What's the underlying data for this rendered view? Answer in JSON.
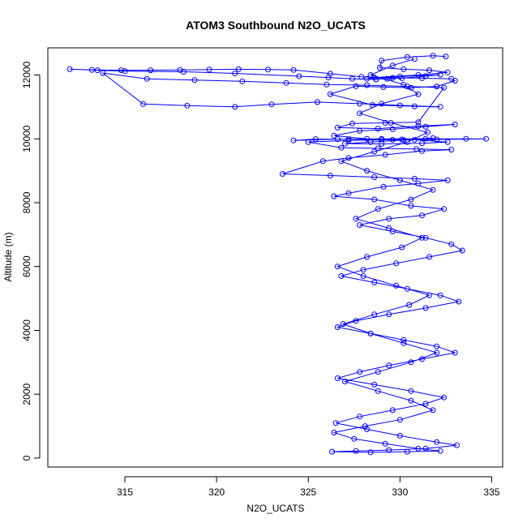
{
  "chart_data": {
    "type": "scatter",
    "title": "ATOM3 Southbound N2O_UCATS",
    "xlabel": "N2O_UCATS",
    "ylabel": "Altitude (m)",
    "xlim": [
      310.8,
      335.6
    ],
    "ylim": [
      -280,
      12850
    ],
    "x_ticks": [
      315,
      320,
      325,
      330,
      335
    ],
    "y_ticks": [
      0,
      2000,
      4000,
      6000,
      8000,
      10000,
      12000
    ],
    "grid": false,
    "connected": true,
    "series": [
      {
        "color": "#0000ff",
        "marker": "open-circle",
        "x": [
          332.5,
          331.8,
          330.4,
          329.0,
          328.9,
          330.2,
          331.6,
          332.6,
          331.0,
          328.6,
          328.2,
          330.0,
          332.2,
          331.4,
          330.1,
          329.3,
          328.7,
          327.4,
          326.1,
          324.5,
          321.0,
          318.2,
          315.0,
          313.5,
          312.0,
          313.2,
          314.8,
          316.4,
          318.0,
          319.6,
          321.2,
          322.8,
          324.2,
          326.2,
          327.9,
          329.6,
          331.2,
          332.8,
          333.0,
          332.0,
          330.6,
          329.1,
          327.6,
          326.2,
          328.5,
          330.8,
          332.2,
          330.0,
          327.8,
          325.5,
          323.0,
          321.0,
          318.4,
          316.0,
          313.8,
          316.2,
          318.8,
          321.4,
          323.8,
          326.0,
          328.2,
          330.4,
          332.4,
          331.0,
          329.2,
          327.4,
          326.6,
          328.8,
          331.0,
          333.0,
          331.4,
          329.6,
          327.8,
          326.4,
          328.2,
          330.1,
          331.8,
          330.2,
          328.4,
          327.0,
          329.0,
          331.2,
          332.6,
          330.8,
          329.0,
          327.2,
          325.4,
          324.2,
          326.6,
          329.0,
          331.4,
          333.6,
          334.7,
          332.0,
          329.6,
          327.2,
          325.0,
          326.8,
          328.8,
          330.9,
          332.8,
          331.2,
          329.2,
          327.2,
          325.8,
          323.6,
          326.2,
          328.6,
          330.8,
          332.6,
          331.0,
          329.1,
          327.2,
          326.4,
          328.6,
          330.6,
          332.4,
          331.2,
          329.4,
          327.8,
          329.6,
          331.4,
          332.8,
          333.4,
          331.6,
          329.8,
          328.0,
          326.8,
          328.6,
          330.4,
          332.2,
          333.2,
          331.4,
          329.4,
          327.6,
          326.6,
          328.4,
          330.2,
          332.0,
          333.0,
          331.2,
          329.4,
          327.8,
          326.6,
          328.6,
          330.6,
          332.4,
          331.4,
          329.6,
          327.8,
          326.5,
          328.2,
          330.0,
          332.0,
          333.1,
          331.4,
          329.4,
          327.6,
          326.3,
          328.4,
          330.4,
          332.2,
          331.0,
          329.2,
          327.5,
          326.4,
          328.1,
          330.0,
          331.8,
          330.6,
          328.8,
          327.0,
          328.8,
          330.6,
          332.0,
          330.2,
          328.4,
          326.9,
          328.6,
          330.5,
          331.6,
          329.8,
          328.0,
          326.6,
          328.2,
          330.1,
          331.2,
          329.4,
          327.6,
          328.8,
          330.6,
          331.8,
          330.0,
          328.2,
          326.8,
          328.6,
          330.4,
          331.5,
          329.5,
          327.8,
          329.0,
          331.0,
          330.2,
          328.4,
          329.6,
          330.8
        ],
        "y": [
          12580,
          12600,
          12560,
          12450,
          12230,
          12180,
          12150,
          12080,
          12000,
          11920,
          11880,
          11950,
          12010,
          11960,
          11900,
          11880,
          11860,
          11880,
          11920,
          11960,
          12050,
          12100,
          12120,
          12150,
          12180,
          12160,
          12150,
          12150,
          12160,
          12170,
          12180,
          12170,
          12160,
          12040,
          11940,
          11910,
          11900,
          11880,
          11820,
          11640,
          11600,
          11620,
          11650,
          11400,
          11060,
          11020,
          11000,
          11050,
          11100,
          11150,
          11080,
          11000,
          11040,
          11090,
          12060,
          11880,
          11840,
          11800,
          11750,
          11700,
          11680,
          11640,
          11600,
          10520,
          10500,
          10480,
          10350,
          10320,
          10400,
          10450,
          10380,
          10300,
          10250,
          10100,
          10000,
          9980,
          10020,
          9960,
          9900,
          9850,
          9840,
          9860,
          9900,
          9970,
          9980,
          9990,
          9990,
          9950,
          9990,
          10000,
          10000,
          10000,
          10000,
          9980,
          9970,
          9950,
          9900,
          9720,
          9700,
          9680,
          9660,
          9620,
          9500,
          9400,
          9300,
          8900,
          8850,
          8800,
          8750,
          8700,
          8600,
          8500,
          8300,
          8200,
          8100,
          7900,
          7800,
          7600,
          7500,
          7300,
          7100,
          6900,
          6700,
          6500,
          6300,
          6100,
          5900,
          5700,
          5500,
          5300,
          5100,
          4900,
          4700,
          4500,
          4300,
          4100,
          3900,
          3700,
          3500,
          3300,
          3100,
          2900,
          2700,
          2500,
          2300,
          2100,
          1900,
          1700,
          1500,
          1300,
          1100,
          900,
          700,
          500,
          400,
          300,
          250,
          220,
          200,
          180,
          200,
          220,
          300,
          450,
          600,
          800,
          1000,
          1200,
          1500,
          1800,
          2100,
          2400,
          2700,
          3000,
          3300,
          3600,
          3900,
          4200,
          4500,
          4800,
          5100,
          5400,
          5700,
          6000,
          6300,
          6600,
          6900,
          7200,
          7500,
          7800,
          8100,
          8400,
          8700,
          9000,
          9300,
          9600,
          9900,
          10200,
          10500,
          10800,
          11100,
          11400,
          11700,
          12000,
          12300,
          12500
        ]
      }
    ]
  }
}
